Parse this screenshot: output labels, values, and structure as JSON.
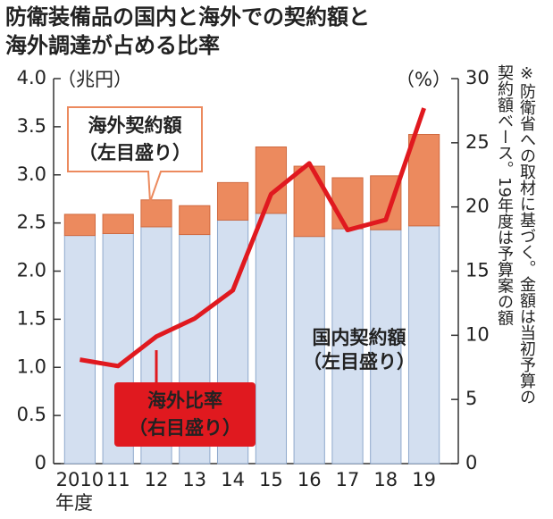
{
  "chart_data": {
    "type": "bar",
    "title": [
      "防衛装備品の国内と海外での契約額と",
      "海外調達が占める比率"
    ],
    "y_unit": "（兆円）",
    "y2_unit": "（%）",
    "x_unit": "年度",
    "note": [
      "※防衛省への取材に基づく。金額は当初予算の",
      "契約額ベース。19年度は予算案の額"
    ],
    "categories": [
      "2010",
      "11",
      "12",
      "13",
      "14",
      "15",
      "16",
      "17",
      "18",
      "19"
    ],
    "series": [
      {
        "name": [
          "国内契約額",
          "（左目盛り）"
        ],
        "color": "#d3dff0",
        "stack": true,
        "values": [
          2.37,
          2.39,
          2.46,
          2.38,
          2.53,
          2.6,
          2.36,
          2.44,
          2.43,
          2.47
        ]
      },
      {
        "name": [
          "海外契約額",
          "（左目盛り）"
        ],
        "color": "#ec8a5e",
        "stack": true,
        "values": [
          0.22,
          0.2,
          0.28,
          0.3,
          0.39,
          0.69,
          0.73,
          0.53,
          0.56,
          0.95
        ]
      },
      {
        "name": [
          "海外比率",
          "（右目盛り）"
        ],
        "color": "#e0191f",
        "type": "line",
        "axis": "y2",
        "values": [
          8.1,
          7.6,
          9.9,
          11.3,
          13.5,
          21.0,
          23.4,
          18.2,
          19.0,
          27.7
        ]
      }
    ],
    "ylim": [
      0,
      4
    ],
    "yticks": [
      0,
      0.5,
      {
        "value": 1,
        "label": "1.0"
      },
      1.5,
      {
        "value": 2,
        "label": "2.0"
      },
      2.5,
      {
        "value": 3,
        "label": "3.0"
      },
      3.5,
      {
        "value": 4,
        "label": "4.0"
      }
    ],
    "y2lim": [
      0,
      30
    ],
    "y2ticks": [
      0,
      5,
      10,
      15,
      20,
      25,
      30
    ]
  }
}
